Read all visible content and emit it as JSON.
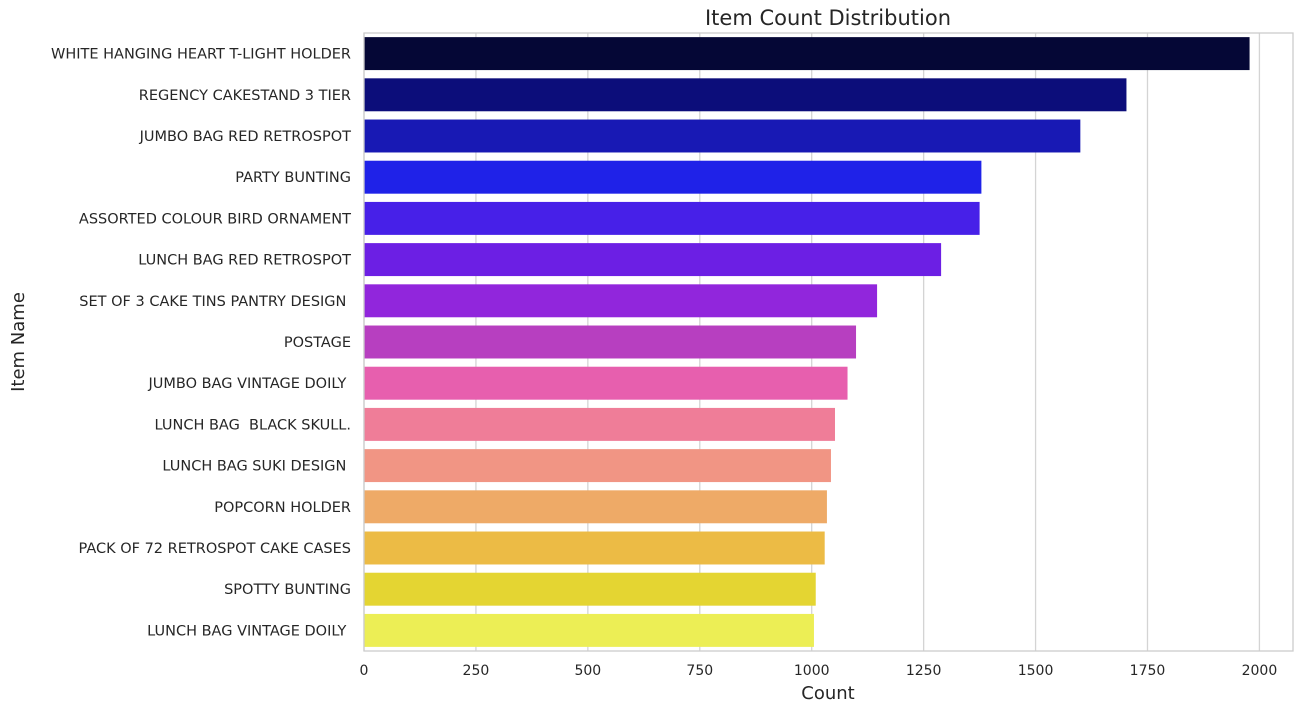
{
  "chart_data": {
    "type": "bar",
    "orientation": "horizontal",
    "title": "Item Count Distribution",
    "xlabel": "Count",
    "ylabel": "Item Name",
    "xlim": [
      0,
      2075
    ],
    "xticks": [
      0,
      250,
      500,
      750,
      1000,
      1250,
      1500,
      1750,
      2000
    ],
    "grid": true,
    "categories": [
      "WHITE HANGING HEART T-LIGHT HOLDER",
      "REGENCY CAKESTAND 3 TIER",
      "JUMBO BAG RED RETROSPOT",
      "PARTY BUNTING",
      "ASSORTED COLOUR BIRD ORNAMENT",
      "LUNCH BAG RED RETROSPOT",
      "SET OF 3 CAKE TINS PANTRY DESIGN ",
      "POSTAGE",
      "JUMBO BAG VINTAGE DOILY ",
      "LUNCH BAG  BLACK SKULL.",
      "LUNCH BAG SUKI DESIGN ",
      "POPCORN HOLDER",
      "PACK OF 72 RETROSPOT CAKE CASES",
      "SPOTTY BUNTING",
      "LUNCH BAG VINTAGE DOILY "
    ],
    "values": [
      1978,
      1703,
      1600,
      1379,
      1375,
      1289,
      1146,
      1099,
      1080,
      1052,
      1043,
      1034,
      1029,
      1009,
      1005
    ],
    "colors": [
      "#050736",
      "#0c0d7a",
      "#1819b4",
      "#1f22e8",
      "#4720e8",
      "#6c1fe4",
      "#9126dc",
      "#b73fc0",
      "#e75fae",
      "#ef7d98",
      "#f19584",
      "#eeaa67",
      "#ecbb45",
      "#e4d532",
      "#ecee55"
    ]
  }
}
